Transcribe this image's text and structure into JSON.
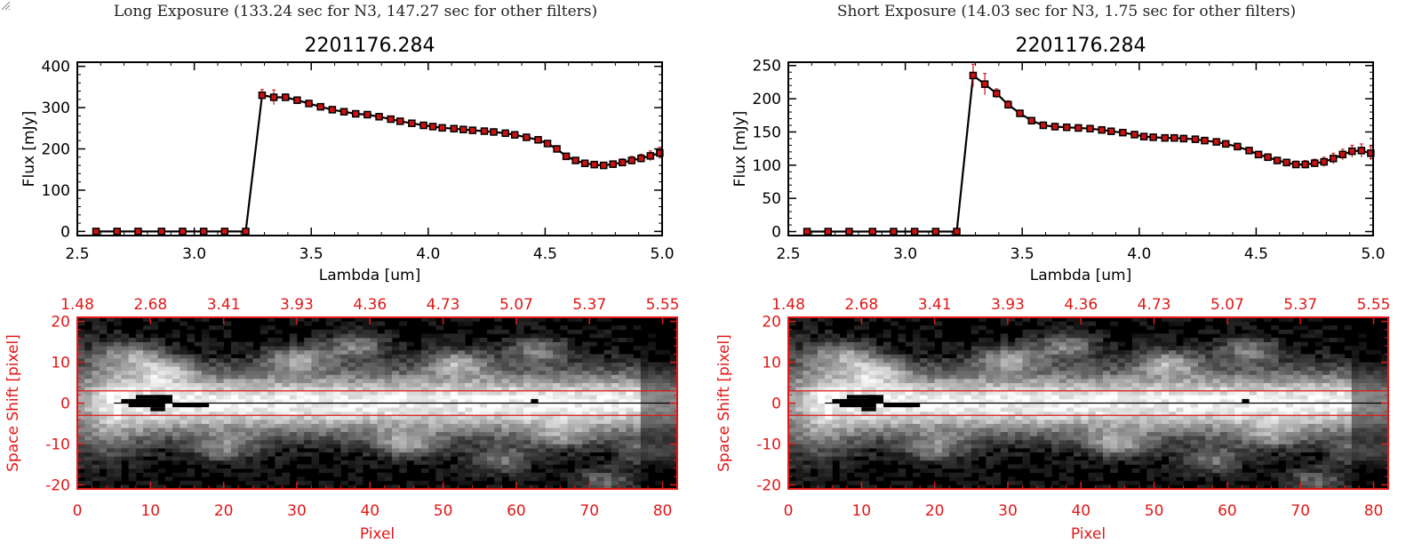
{
  "window": {
    "resize_grip_icon": "resize-grip-icon"
  },
  "colors": {
    "axis_red": "#e01818",
    "marker_red": "#cc1111",
    "line": "#000000",
    "background": "#ffffff"
  },
  "panels": [
    {
      "exposure_title": "Long Exposure (133.24 sec for N3, 147.27 sec for other filters)"
    },
    {
      "exposure_title": "Short Exposure (14.03 sec for N3, 1.75 sec for other filters)"
    }
  ],
  "chart_data": [
    {
      "type": "line",
      "title": "2201176.284",
      "xlabel": "Lambda [um]",
      "ylabel": "Flux [mJy]",
      "xlim": [
        2.5,
        5.0
      ],
      "ylim": [
        -10,
        410
      ],
      "x_ticks": [
        "2.5",
        "3.0",
        "3.5",
        "4.0",
        "4.5",
        "5.0"
      ],
      "y_ticks": [
        "0",
        "100",
        "200",
        "300",
        "400"
      ],
      "grid": false,
      "x": [
        2.58,
        2.67,
        2.76,
        2.86,
        2.95,
        3.04,
        3.13,
        3.22,
        3.29,
        3.34,
        3.39,
        3.44,
        3.49,
        3.54,
        3.59,
        3.64,
        3.69,
        3.74,
        3.79,
        3.84,
        3.88,
        3.93,
        3.98,
        4.02,
        4.06,
        4.11,
        4.15,
        4.19,
        4.24,
        4.28,
        4.33,
        4.37,
        4.42,
        4.47,
        4.51,
        4.55,
        4.59,
        4.63,
        4.67,
        4.71,
        4.75,
        4.79,
        4.83,
        4.87,
        4.91,
        4.95,
        4.99
      ],
      "y": [
        0,
        0,
        0,
        0,
        0,
        0,
        0,
        0,
        330,
        325,
        325,
        318,
        310,
        302,
        295,
        290,
        285,
        283,
        278,
        272,
        267,
        262,
        257,
        254,
        251,
        249,
        247,
        245,
        243,
        241,
        238,
        234,
        228,
        222,
        213,
        200,
        182,
        172,
        165,
        162,
        160,
        163,
        167,
        172,
        177,
        183,
        190
      ],
      "yerr": [
        0,
        0,
        0,
        0,
        0,
        0,
        0,
        0,
        14,
        18,
        8,
        6,
        5,
        5,
        5,
        5,
        5,
        5,
        5,
        5,
        5,
        5,
        5,
        5,
        5,
        5,
        5,
        5,
        5,
        5,
        5,
        5,
        6,
        6,
        6,
        6,
        6,
        6,
        6,
        6,
        7,
        8,
        9,
        10,
        10,
        12,
        14
      ]
    },
    {
      "type": "heatmap",
      "xlabel": "Pixel",
      "ylabel": "Space Shift [pixel]",
      "xlim": [
        0,
        82
      ],
      "ylim": [
        -21,
        21
      ],
      "x_ticks": [
        "0",
        "10",
        "20",
        "30",
        "40",
        "50",
        "60",
        "70",
        "80"
      ],
      "y_ticks": [
        "-20",
        "-10",
        "0",
        "10",
        "20"
      ],
      "top_axis_ticks": [
        "1.48",
        "2.68",
        "3.41",
        "3.93",
        "4.36",
        "4.73",
        "5.07",
        "5.37",
        "5.55"
      ],
      "aperture_rows": [
        -3,
        3
      ]
    },
    {
      "type": "line",
      "title": "2201176.284",
      "xlabel": "Lambda [um]",
      "ylabel": "Flux [mJy]",
      "xlim": [
        2.5,
        5.0
      ],
      "ylim": [
        -6,
        255
      ],
      "x_ticks": [
        "2.5",
        "3.0",
        "3.5",
        "4.0",
        "4.5",
        "5.0"
      ],
      "y_ticks": [
        "0",
        "50",
        "100",
        "150",
        "200",
        "250"
      ],
      "grid": false,
      "x": [
        2.58,
        2.67,
        2.76,
        2.86,
        2.95,
        3.04,
        3.13,
        3.22,
        3.29,
        3.34,
        3.39,
        3.44,
        3.49,
        3.54,
        3.59,
        3.64,
        3.69,
        3.74,
        3.79,
        3.84,
        3.88,
        3.93,
        3.98,
        4.02,
        4.06,
        4.11,
        4.15,
        4.19,
        4.24,
        4.28,
        4.33,
        4.37,
        4.42,
        4.47,
        4.51,
        4.55,
        4.59,
        4.63,
        4.67,
        4.71,
        4.75,
        4.79,
        4.83,
        4.87,
        4.91,
        4.95,
        4.99
      ],
      "y": [
        0,
        0,
        0,
        0,
        0,
        0,
        0,
        0,
        235,
        222,
        208,
        191,
        178,
        167,
        160,
        158,
        157,
        156,
        155,
        153,
        151,
        149,
        146,
        143,
        142,
        141,
        141,
        140,
        139,
        137,
        135,
        132,
        128,
        122,
        116,
        112,
        107,
        104,
        101,
        101,
        103,
        105,
        110,
        116,
        121,
        122,
        118
      ],
      "yerr": [
        0,
        0,
        0,
        0,
        0,
        0,
        0,
        0,
        17,
        16,
        7,
        6,
        5,
        5,
        5,
        5,
        5,
        5,
        5,
        5,
        5,
        5,
        5,
        5,
        5,
        5,
        5,
        5,
        5,
        5,
        5,
        5,
        5,
        5,
        5,
        5,
        5,
        5,
        5,
        6,
        6,
        7,
        8,
        8,
        9,
        10,
        10
      ]
    },
    {
      "type": "heatmap",
      "xlabel": "Pixel",
      "ylabel": "Space Shift [pixel]",
      "xlim": [
        0,
        82
      ],
      "ylim": [
        -21,
        21
      ],
      "x_ticks": [
        "0",
        "10",
        "20",
        "30",
        "40",
        "50",
        "60",
        "70",
        "80"
      ],
      "y_ticks": [
        "-20",
        "-10",
        "0",
        "10",
        "20"
      ],
      "top_axis_ticks": [
        "1.48",
        "2.68",
        "3.41",
        "3.93",
        "4.36",
        "4.73",
        "5.07",
        "5.37",
        "5.55"
      ],
      "aperture_rows": [
        -3,
        3
      ]
    }
  ]
}
